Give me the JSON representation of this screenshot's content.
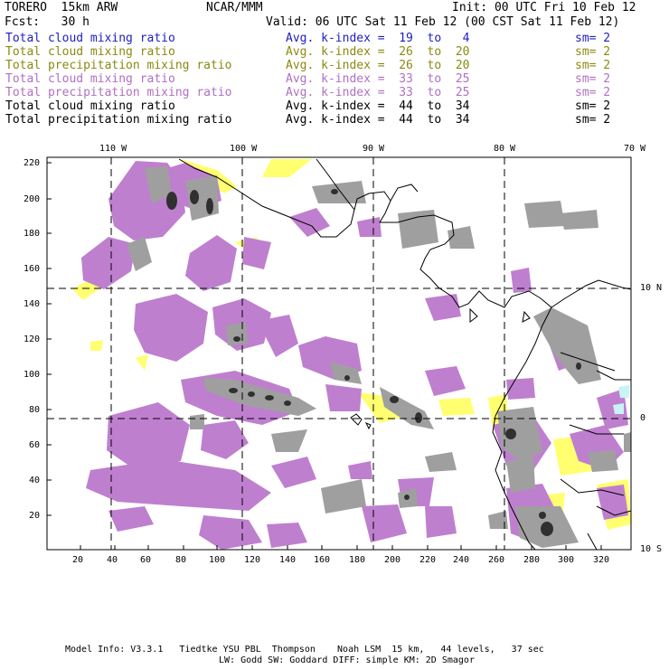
{
  "header": {
    "model": "TORERO  15km ARW",
    "center": "NCAR/MMM",
    "init": "Init: 00 UTC Fri 10 Feb 12",
    "fcst": "Fcst:   30 h",
    "valid": "Valid: 06 UTC Sat 11 Feb 12 (00 CST Sat 11 Feb 12)"
  },
  "legend": [
    {
      "field": "Total cloud mixing ratio",
      "k": "Avg. k-index =  19  to   4",
      "sm": "sm= 2",
      "color": "#2020c0"
    },
    {
      "field": "Total cloud mixing ratio",
      "k": "Avg. k-index =  26  to  20",
      "sm": "sm= 2",
      "color": "#8a8a10"
    },
    {
      "field": "Total precipitation mixing ratio",
      "k": "Avg. k-index =  26  to  20",
      "sm": "sm= 2",
      "color": "#8a8a10"
    },
    {
      "field": "Total cloud mixing ratio",
      "k": "Avg. k-index =  33  to  25",
      "sm": "sm= 2",
      "color": "#b070c0"
    },
    {
      "field": "Total precipitation mixing ratio",
      "k": "Avg. k-index =  33  to  25",
      "sm": "sm= 2",
      "color": "#b070c0"
    },
    {
      "field": "Total cloud mixing ratio",
      "k": "Avg. k-index =  44  to  34",
      "sm": "sm= 2",
      "color": "#000000"
    },
    {
      "field": "Total precipitation mixing ratio",
      "k": "Avg. k-index =  44  to  34",
      "sm": "sm= 2",
      "color": "#000000"
    }
  ],
  "map": {
    "lon_labels": [
      "110 W",
      "100 W",
      "90 W",
      "80 W",
      "70 W"
    ],
    "lat_labels": [
      "10 N",
      "0",
      "10 S"
    ],
    "x_ticks": [
      "20",
      "40",
      "60",
      "80",
      "100",
      "120",
      "140",
      "160",
      "180",
      "200",
      "220",
      "240",
      "260",
      "280",
      "300",
      "320"
    ],
    "y_ticks": [
      "220",
      "200",
      "180",
      "160",
      "140",
      "120",
      "100",
      "80",
      "60",
      "40",
      "20"
    ],
    "colors": {
      "purple": "#bf7fcf",
      "yellow": "#ffff70",
      "gray": "#9f9f9f",
      "dark": "#303030",
      "cyan": "#c8f4f8"
    }
  },
  "footer": {
    "line1": "Model Info: V3.3.1   Tiedtke YSU PBL  Thompson    Noah LSM  15 km,   44 levels,   37 sec",
    "line2": "LW: Godd SW: Goddard DIFF: simple KM: 2D Smagor"
  }
}
